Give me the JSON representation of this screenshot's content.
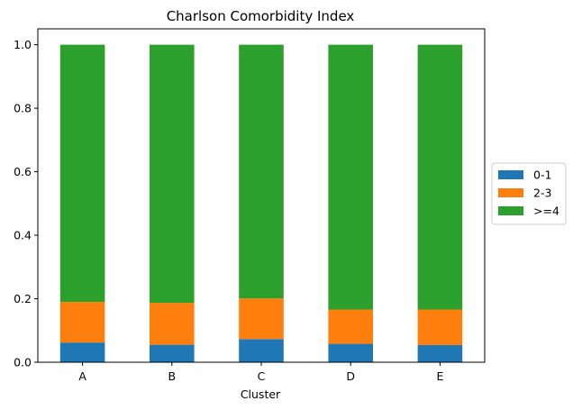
{
  "chart_data": {
    "type": "bar",
    "stacked": true,
    "title": "Charlson Comorbidity Index",
    "xlabel": "Cluster",
    "ylabel": "",
    "ylim": [
      0,
      1.05
    ],
    "yticks": [
      "0.0",
      "0.2",
      "0.4",
      "0.6",
      "0.8",
      "1.0"
    ],
    "categories": [
      "A",
      "B",
      "C",
      "D",
      "E"
    ],
    "series": [
      {
        "name": "0-1",
        "color": "#1f77b4",
        "values": [
          0.062,
          0.055,
          0.073,
          0.058,
          0.054
        ]
      },
      {
        "name": "2-3",
        "color": "#ff7f0e",
        "values": [
          0.128,
          0.132,
          0.128,
          0.108,
          0.112
        ]
      },
      {
        "name": ">=4",
        "color": "#2ca02c",
        "values": [
          0.81,
          0.813,
          0.799,
          0.834,
          0.834
        ]
      }
    ],
    "legend": "center-right",
    "grid": false
  }
}
